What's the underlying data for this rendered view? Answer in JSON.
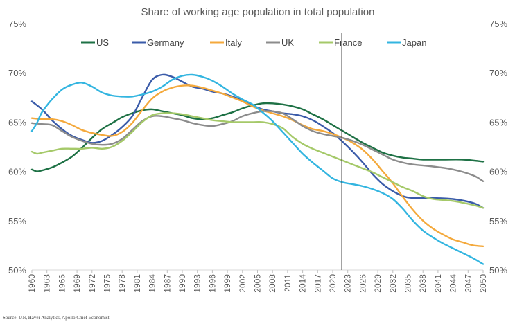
{
  "chart_data": {
    "type": "line",
    "title": "Share of working age population in total population",
    "source": "Source: UN, Haver Analytics, Apollo Chief Economist",
    "ylim": [
      50,
      75
    ],
    "xlim": [
      1960,
      2050
    ],
    "y_ticks": [
      "50%",
      "55%",
      "60%",
      "65%",
      "70%",
      "75%"
    ],
    "y_tick_values": [
      50,
      55,
      60,
      65,
      70,
      75
    ],
    "x_ticks": [
      "1960",
      "1963",
      "1966",
      "1969",
      "1972",
      "1975",
      "1978",
      "1981",
      "1984",
      "1987",
      "1990",
      "1993",
      "1996",
      "1999",
      "2002",
      "2005",
      "2008",
      "2011",
      "2014",
      "2017",
      "2020",
      "2023",
      "2026",
      "2029",
      "2032",
      "2035",
      "2038",
      "2041",
      "2044",
      "2047",
      "2050"
    ],
    "grid": false,
    "legend_position": "top",
    "vertical_marker_year": 2021.8,
    "series": [
      {
        "name": "US",
        "color": "#1e7145",
        "points": [
          [
            1960,
            60.2
          ],
          [
            1961,
            60
          ],
          [
            1962,
            60.1
          ],
          [
            1964,
            60.4
          ],
          [
            1966,
            60.9
          ],
          [
            1968,
            61.5
          ],
          [
            1970,
            62.4
          ],
          [
            1972,
            63.4
          ],
          [
            1974,
            64.3
          ],
          [
            1976,
            64.9
          ],
          [
            1978,
            65.5
          ],
          [
            1980,
            65.9
          ],
          [
            1982,
            66.2
          ],
          [
            1984,
            66.3
          ],
          [
            1986,
            66.1
          ],
          [
            1988,
            65.9
          ],
          [
            1990,
            65.7
          ],
          [
            1992,
            65.4
          ],
          [
            1994,
            65.3
          ],
          [
            1996,
            65.4
          ],
          [
            1998,
            65.7
          ],
          [
            2000,
            66
          ],
          [
            2002,
            66.4
          ],
          [
            2004,
            66.7
          ],
          [
            2006,
            66.9
          ],
          [
            2008,
            66.9
          ],
          [
            2010,
            66.8
          ],
          [
            2012,
            66.6
          ],
          [
            2014,
            66.3
          ],
          [
            2016,
            65.8
          ],
          [
            2018,
            65.3
          ],
          [
            2020,
            64.7
          ],
          [
            2022,
            64.1
          ],
          [
            2024,
            63.5
          ],
          [
            2026,
            62.9
          ],
          [
            2028,
            62.4
          ],
          [
            2030,
            61.9
          ],
          [
            2032,
            61.6
          ],
          [
            2034,
            61.4
          ],
          [
            2036,
            61.3
          ],
          [
            2038,
            61.2
          ],
          [
            2042,
            61.2
          ],
          [
            2046,
            61.2
          ],
          [
            2050,
            61
          ]
        ]
      },
      {
        "name": "Germany",
        "color": "#3a5ba9",
        "points": [
          [
            1960,
            67.1
          ],
          [
            1962,
            66.3
          ],
          [
            1964,
            65.2
          ],
          [
            1966,
            64.3
          ],
          [
            1968,
            63.6
          ],
          [
            1970,
            63.2
          ],
          [
            1972,
            62.9
          ],
          [
            1974,
            63.1
          ],
          [
            1976,
            63.7
          ],
          [
            1978,
            64.5
          ],
          [
            1980,
            65.6
          ],
          [
            1982,
            67.5
          ],
          [
            1984,
            69.3
          ],
          [
            1986,
            69.8
          ],
          [
            1988,
            69.6
          ],
          [
            1990,
            69.1
          ],
          [
            1992,
            68.6
          ],
          [
            1994,
            68.4
          ],
          [
            1996,
            68.1
          ],
          [
            1998,
            67.9
          ],
          [
            2000,
            67.6
          ],
          [
            2002,
            67.2
          ],
          [
            2004,
            66.7
          ],
          [
            2006,
            66.3
          ],
          [
            2008,
            66.1
          ],
          [
            2010,
            65.9
          ],
          [
            2012,
            65.8
          ],
          [
            2014,
            65.6
          ],
          [
            2016,
            65.2
          ],
          [
            2018,
            64.6
          ],
          [
            2020,
            63.9
          ],
          [
            2022,
            63
          ],
          [
            2024,
            62
          ],
          [
            2026,
            60.9
          ],
          [
            2028,
            59.7
          ],
          [
            2030,
            58.7
          ],
          [
            2032,
            58
          ],
          [
            2034,
            57.5
          ],
          [
            2036,
            57.3
          ],
          [
            2040,
            57.3
          ],
          [
            2044,
            57.2
          ],
          [
            2048,
            56.8
          ],
          [
            2050,
            56.3
          ]
        ]
      },
      {
        "name": "Italy",
        "color": "#f4a93c",
        "points": [
          [
            1960,
            65.4
          ],
          [
            1962,
            65.3
          ],
          [
            1964,
            65.3
          ],
          [
            1966,
            65.1
          ],
          [
            1968,
            64.7
          ],
          [
            1970,
            64.2
          ],
          [
            1972,
            63.9
          ],
          [
            1974,
            63.7
          ],
          [
            1976,
            63.6
          ],
          [
            1978,
            64
          ],
          [
            1980,
            64.9
          ],
          [
            1982,
            66.2
          ],
          [
            1984,
            67.4
          ],
          [
            1986,
            68.1
          ],
          [
            1988,
            68.5
          ],
          [
            1990,
            68.7
          ],
          [
            1992,
            68.7
          ],
          [
            1994,
            68.5
          ],
          [
            1996,
            68.2
          ],
          [
            1998,
            67.9
          ],
          [
            2000,
            67.5
          ],
          [
            2002,
            67.1
          ],
          [
            2004,
            66.6
          ],
          [
            2006,
            66.2
          ],
          [
            2008,
            65.9
          ],
          [
            2010,
            65.6
          ],
          [
            2012,
            65.2
          ],
          [
            2014,
            64.7
          ],
          [
            2016,
            64.3
          ],
          [
            2018,
            64.1
          ],
          [
            2020,
            63.8
          ],
          [
            2022,
            63.4
          ],
          [
            2024,
            62.9
          ],
          [
            2026,
            62.2
          ],
          [
            2028,
            61.2
          ],
          [
            2030,
            60
          ],
          [
            2032,
            58.8
          ],
          [
            2034,
            57.4
          ],
          [
            2036,
            56.1
          ],
          [
            2038,
            55
          ],
          [
            2040,
            54.2
          ],
          [
            2042,
            53.6
          ],
          [
            2044,
            53.1
          ],
          [
            2046,
            52.8
          ],
          [
            2048,
            52.5
          ],
          [
            2050,
            52.4
          ]
        ]
      },
      {
        "name": "UK",
        "color": "#8c8c8c",
        "points": [
          [
            1960,
            64.9
          ],
          [
            1962,
            64.8
          ],
          [
            1964,
            64.7
          ],
          [
            1966,
            64.1
          ],
          [
            1968,
            63.5
          ],
          [
            1970,
            63.1
          ],
          [
            1972,
            62.8
          ],
          [
            1974,
            62.7
          ],
          [
            1976,
            62.8
          ],
          [
            1978,
            63.3
          ],
          [
            1980,
            64.2
          ],
          [
            1982,
            65.1
          ],
          [
            1984,
            65.6
          ],
          [
            1986,
            65.6
          ],
          [
            1988,
            65.4
          ],
          [
            1990,
            65.2
          ],
          [
            1992,
            64.9
          ],
          [
            1994,
            64.7
          ],
          [
            1996,
            64.6
          ],
          [
            1998,
            64.8
          ],
          [
            2000,
            65.1
          ],
          [
            2002,
            65.6
          ],
          [
            2004,
            65.9
          ],
          [
            2006,
            66.1
          ],
          [
            2008,
            66.1
          ],
          [
            2010,
            65.9
          ],
          [
            2012,
            65.3
          ],
          [
            2014,
            64.6
          ],
          [
            2016,
            64.1
          ],
          [
            2018,
            63.8
          ],
          [
            2020,
            63.6
          ],
          [
            2022,
            63.4
          ],
          [
            2024,
            63.1
          ],
          [
            2026,
            62.7
          ],
          [
            2028,
            62.2
          ],
          [
            2030,
            61.7
          ],
          [
            2032,
            61.2
          ],
          [
            2034,
            60.9
          ],
          [
            2036,
            60.7
          ],
          [
            2040,
            60.5
          ],
          [
            2044,
            60.2
          ],
          [
            2048,
            59.6
          ],
          [
            2050,
            59
          ]
        ]
      },
      {
        "name": "France",
        "color": "#a5c969",
        "points": [
          [
            1960,
            62
          ],
          [
            1961,
            61.8
          ],
          [
            1962,
            61.9
          ],
          [
            1964,
            62.1
          ],
          [
            1966,
            62.3
          ],
          [
            1968,
            62.3
          ],
          [
            1970,
            62.3
          ],
          [
            1972,
            62.4
          ],
          [
            1974,
            62.3
          ],
          [
            1976,
            62.5
          ],
          [
            1978,
            63.1
          ],
          [
            1980,
            64
          ],
          [
            1982,
            65
          ],
          [
            1984,
            65.7
          ],
          [
            1986,
            65.9
          ],
          [
            1988,
            65.9
          ],
          [
            1990,
            65.8
          ],
          [
            1992,
            65.6
          ],
          [
            1994,
            65.4
          ],
          [
            1996,
            65.2
          ],
          [
            1998,
            65.1
          ],
          [
            2000,
            65
          ],
          [
            2002,
            65
          ],
          [
            2004,
            65
          ],
          [
            2006,
            65
          ],
          [
            2008,
            64.8
          ],
          [
            2010,
            64.4
          ],
          [
            2012,
            63.5
          ],
          [
            2014,
            62.8
          ],
          [
            2016,
            62.3
          ],
          [
            2018,
            61.9
          ],
          [
            2020,
            61.5
          ],
          [
            2022,
            61.1
          ],
          [
            2024,
            60.7
          ],
          [
            2026,
            60.3
          ],
          [
            2028,
            59.9
          ],
          [
            2030,
            59.4
          ],
          [
            2032,
            58.9
          ],
          [
            2034,
            58.4
          ],
          [
            2036,
            58
          ],
          [
            2038,
            57.5
          ],
          [
            2040,
            57.2
          ],
          [
            2044,
            57
          ],
          [
            2048,
            56.6
          ],
          [
            2050,
            56.3
          ]
        ]
      },
      {
        "name": "Japan",
        "color": "#33b5e0",
        "points": [
          [
            1960,
            64.1
          ],
          [
            1961,
            64.9
          ],
          [
            1962,
            66
          ],
          [
            1964,
            67.3
          ],
          [
            1966,
            68.3
          ],
          [
            1968,
            68.8
          ],
          [
            1970,
            69
          ],
          [
            1972,
            68.6
          ],
          [
            1974,
            68
          ],
          [
            1976,
            67.7
          ],
          [
            1978,
            67.6
          ],
          [
            1980,
            67.6
          ],
          [
            1982,
            67.8
          ],
          [
            1984,
            68.1
          ],
          [
            1986,
            68.6
          ],
          [
            1988,
            69.3
          ],
          [
            1990,
            69.7
          ],
          [
            1992,
            69.8
          ],
          [
            1994,
            69.6
          ],
          [
            1996,
            69.2
          ],
          [
            1998,
            68.6
          ],
          [
            2000,
            67.9
          ],
          [
            2002,
            67.3
          ],
          [
            2004,
            66.8
          ],
          [
            2006,
            66
          ],
          [
            2008,
            65.1
          ],
          [
            2010,
            64
          ],
          [
            2012,
            62.9
          ],
          [
            2014,
            61.8
          ],
          [
            2016,
            60.9
          ],
          [
            2018,
            60.1
          ],
          [
            2020,
            59.3
          ],
          [
            2022,
            58.9
          ],
          [
            2024,
            58.7
          ],
          [
            2026,
            58.5
          ],
          [
            2028,
            58.2
          ],
          [
            2030,
            57.8
          ],
          [
            2032,
            57.2
          ],
          [
            2034,
            56.2
          ],
          [
            2036,
            55
          ],
          [
            2038,
            54
          ],
          [
            2040,
            53.3
          ],
          [
            2042,
            52.7
          ],
          [
            2044,
            52.2
          ],
          [
            2046,
            51.7
          ],
          [
            2048,
            51.2
          ],
          [
            2050,
            50.6
          ]
        ]
      }
    ]
  }
}
